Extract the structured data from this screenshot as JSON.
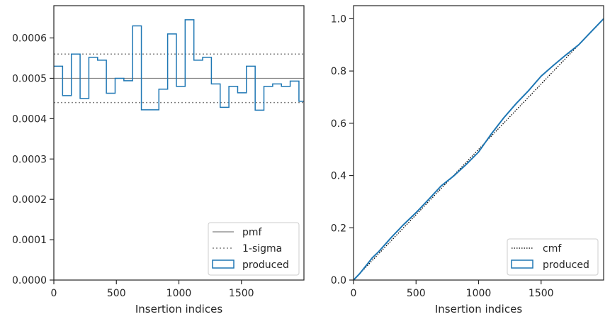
{
  "chart_data": [
    {
      "type": "line",
      "xlabel": "Insertion indices",
      "ylabel": "",
      "xlim": [
        0,
        2000
      ],
      "ylim": [
        0,
        0.00068
      ],
      "xticks": [
        0,
        500,
        1000,
        1500
      ],
      "xtick_labels": [
        "0",
        "500",
        "1000",
        "1500"
      ],
      "yticks": [
        0,
        0.0001,
        0.0002,
        0.0003,
        0.0004,
        0.0005,
        0.0006
      ],
      "ytick_labels": [
        "0.0000",
        "0.0001",
        "0.0002",
        "0.0003",
        "0.0004",
        "0.0005",
        "0.0006"
      ],
      "grid": false,
      "legend": "bottom-right",
      "legend_entries": [
        "pmf",
        "1-sigma",
        "produced"
      ],
      "pmf": 0.0005,
      "sigma_band": [
        0.00044,
        0.00056
      ],
      "bin_edges": [
        0,
        70,
        140,
        210,
        280,
        350,
        420,
        490,
        560,
        630,
        700,
        770,
        840,
        910,
        980,
        1050,
        1120,
        1190,
        1260,
        1330,
        1400,
        1470,
        1540,
        1610,
        1680,
        1750,
        1820,
        1890,
        1960,
        2000
      ],
      "values": [
        0.00053,
        0.000457,
        0.00056,
        0.00045,
        0.000552,
        0.000545,
        0.000463,
        0.0005,
        0.000494,
        0.00063,
        0.000422,
        0.000422,
        0.000473,
        0.00061,
        0.00048,
        0.000645,
        0.000545,
        0.000552,
        0.000486,
        0.000428,
        0.00048,
        0.000464,
        0.00053,
        0.000421,
        0.00048,
        0.000486,
        0.00048,
        0.000493,
        0.000443
      ],
      "colors": {
        "pmf": "#808080",
        "sigma": "#808080",
        "produced": "#1f77b4"
      }
    },
    {
      "type": "line",
      "xlabel": "Insertion indices",
      "ylabel": "",
      "xlim": [
        0,
        2000
      ],
      "ylim": [
        0,
        1.05
      ],
      "xticks": [
        0,
        500,
        1000,
        1500
      ],
      "xtick_labels": [
        "0",
        "500",
        "1000",
        "1500"
      ],
      "yticks": [
        0,
        0.2,
        0.4,
        0.6,
        0.8,
        1.0
      ],
      "ytick_labels": [
        "0.0",
        "0.2",
        "0.4",
        "0.6",
        "0.8",
        "1.0"
      ],
      "grid": false,
      "legend": "bottom-right",
      "legend_entries": [
        "cmf",
        "produced"
      ],
      "cmf": {
        "x": [
          0,
          2000
        ],
        "y": [
          0,
          1.0
        ]
      },
      "produced": {
        "x": [
          0,
          50,
          100,
          150,
          200,
          300,
          400,
          500,
          600,
          700,
          800,
          900,
          1000,
          1100,
          1200,
          1300,
          1400,
          1500,
          1600,
          1700,
          1800,
          1900,
          2000
        ],
        "y": [
          0,
          0.025,
          0.055,
          0.085,
          0.108,
          0.162,
          0.212,
          0.258,
          0.308,
          0.36,
          0.398,
          0.442,
          0.49,
          0.558,
          0.62,
          0.675,
          0.725,
          0.78,
          0.822,
          0.862,
          0.9,
          0.95,
          1.0
        ]
      },
      "colors": {
        "cmf": "#000000",
        "produced": "#1f77b4"
      }
    }
  ]
}
